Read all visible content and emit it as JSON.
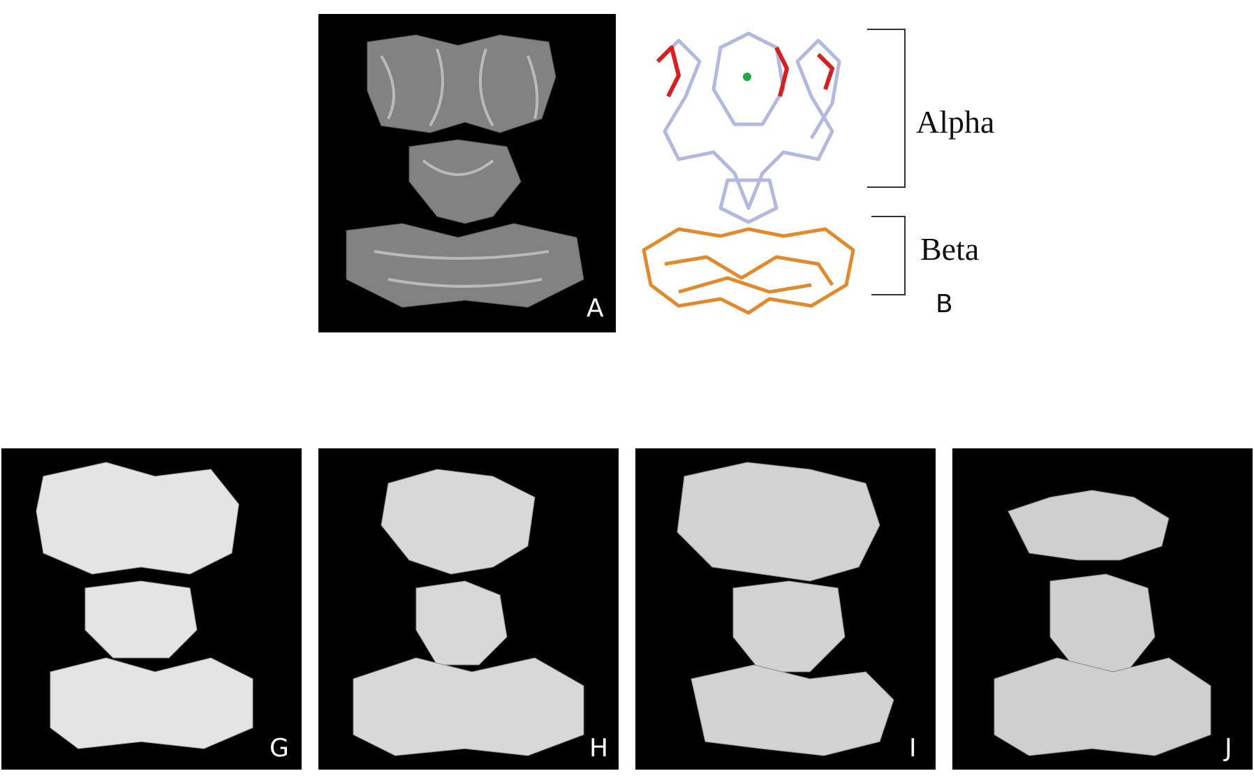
{
  "figure": {
    "panel_a": {
      "label": "A"
    },
    "panel_b": {
      "label": "B",
      "domains": [
        {
          "name": "Alpha",
          "color": "#b3b8de"
        },
        {
          "name": "Beta",
          "color": "#e08a2c"
        }
      ],
      "highlight_color": "#d42020",
      "ligand_color": "#22aa44"
    },
    "bottom_panels": [
      {
        "label": "G"
      },
      {
        "label": "H"
      },
      {
        "label": "I"
      },
      {
        "label": "J"
      }
    ]
  }
}
